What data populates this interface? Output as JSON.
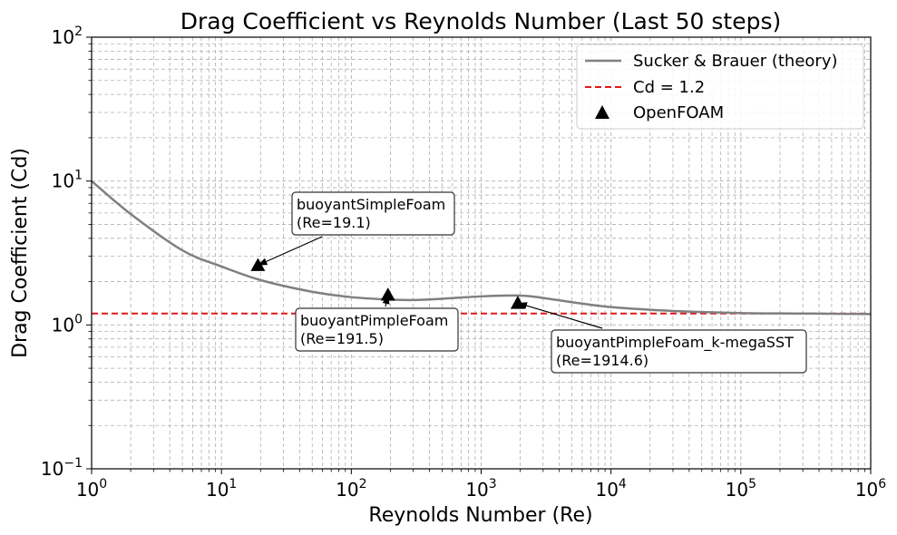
{
  "chart_data": {
    "type": "line",
    "title": "Drag Coefficient vs Reynolds Number (Last 50 steps)",
    "xlabel": "Reynolds Number (Re)",
    "ylabel": "Drag Coefficient (Cd)",
    "xscale": "log",
    "yscale": "log",
    "xlim": [
      1,
      1000000
    ],
    "ylim": [
      0.1,
      100
    ],
    "grid": "major and minor, dashed gray",
    "x_ticks": [
      {
        "base": "10",
        "exp": "0"
      },
      {
        "base": "10",
        "exp": "1"
      },
      {
        "base": "10",
        "exp": "2"
      },
      {
        "base": "10",
        "exp": "3"
      },
      {
        "base": "10",
        "exp": "4"
      },
      {
        "base": "10",
        "exp": "5"
      },
      {
        "base": "10",
        "exp": "6"
      }
    ],
    "y_ticks": [
      {
        "base": "10",
        "exp": "−1"
      },
      {
        "base": "10",
        "exp": "0"
      },
      {
        "base": "10",
        "exp": "1"
      },
      {
        "base": "10",
        "exp": "2"
      }
    ],
    "legend_position": "top-right",
    "series": [
      {
        "name": "Sucker & Brauer (theory)",
        "style": "line",
        "color": "#808080",
        "x": [
          1,
          2,
          5,
          10,
          20,
          50,
          100,
          200,
          300,
          500,
          1000,
          2000,
          3000,
          5000,
          10000,
          30000,
          100000,
          300000,
          1000000
        ],
        "y": [
          10.0,
          5.9,
          3.3,
          2.55,
          2.05,
          1.7,
          1.56,
          1.5,
          1.49,
          1.52,
          1.58,
          1.6,
          1.54,
          1.44,
          1.33,
          1.25,
          1.21,
          1.2,
          1.19
        ]
      },
      {
        "name": "Cd = 1.2",
        "style": "dashed",
        "color": "#e0191a",
        "x": [
          1,
          1000000
        ],
        "y": [
          1.2,
          1.2
        ]
      },
      {
        "name": "OpenFOAM",
        "style": "marker-triangle",
        "color": "#000000",
        "x": [
          19.1,
          191.5,
          1914.6
        ],
        "y": [
          2.6,
          1.62,
          1.42
        ]
      }
    ],
    "annotations": [
      {
        "line1": "buoyantSimpleFoam",
        "line2": "(Re=19.1)"
      },
      {
        "line1": "buoyantPimpleFoam",
        "line2": "(Re=191.5)"
      },
      {
        "line1": "buoyantPimpleFoam_k-megaSST",
        "line2": "(Re=1914.6)"
      }
    ]
  }
}
